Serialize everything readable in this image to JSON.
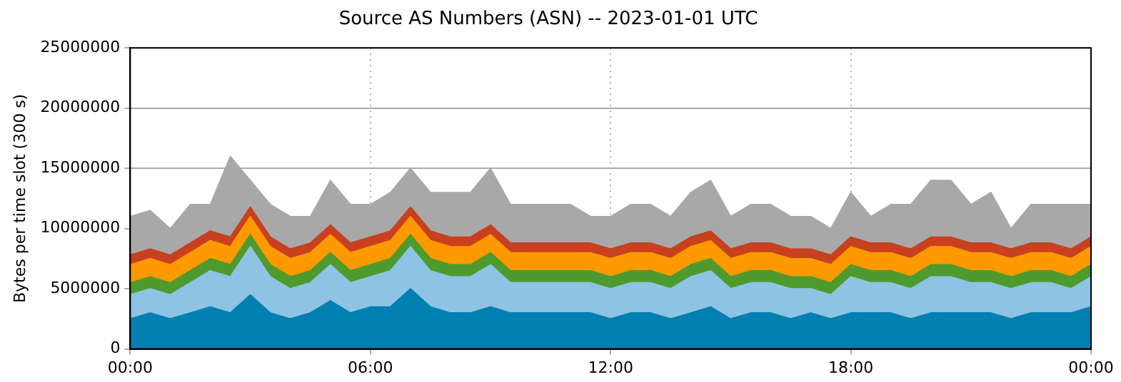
{
  "chart_data": {
    "type": "area",
    "title": "Source AS Numbers (ASN) -- 2023-01-01 UTC",
    "ylabel": "Bytes per time slot (300 s)",
    "stacked": true,
    "grid": true,
    "legend": false,
    "x": [
      0,
      0.5,
      1,
      1.5,
      2,
      2.5,
      3,
      3.5,
      4,
      4.5,
      5,
      5.5,
      6,
      6.5,
      7,
      7.5,
      8,
      8.5,
      9,
      9.5,
      10,
      10.5,
      11,
      11.5,
      12,
      12.5,
      13,
      13.5,
      14,
      14.5,
      15,
      15.5,
      16,
      16.5,
      17,
      17.5,
      18,
      18.5,
      19,
      19.5,
      20,
      20.5,
      21,
      21.5,
      22,
      22.5,
      23,
      23.5,
      24
    ],
    "xlim": [
      0,
      24
    ],
    "xticks": [
      {
        "value": 0,
        "label": "00:00"
      },
      {
        "value": 6,
        "label": "06:00"
      },
      {
        "value": 12,
        "label": "12:00"
      },
      {
        "value": 18,
        "label": "18:00"
      },
      {
        "value": 24,
        "label": "00:00"
      }
    ],
    "ylim": [
      0,
      25000000
    ],
    "yticks": [
      0,
      5000000,
      10000000,
      15000000,
      20000000,
      25000000
    ],
    "series": [
      {
        "color": "#0080b0",
        "values": [
          2500000,
          3000000,
          2500000,
          3000000,
          3500000,
          3000000,
          4500000,
          3000000,
          2500000,
          3000000,
          4000000,
          3000000,
          3500000,
          3500000,
          5000000,
          3500000,
          3000000,
          3000000,
          3500000,
          3000000,
          3000000,
          3000000,
          3000000,
          3000000,
          2500000,
          3000000,
          3000000,
          2500000,
          3000000,
          3500000,
          2500000,
          3000000,
          3000000,
          2500000,
          3000000,
          2500000,
          3000000,
          3000000,
          3000000,
          2500000,
          3000000,
          3000000,
          3000000,
          3000000,
          2500000,
          3000000,
          3000000,
          3000000,
          3500000
        ]
      },
      {
        "color": "#8ec3e3",
        "values": [
          2000000,
          2000000,
          2000000,
          2500000,
          3000000,
          3000000,
          4000000,
          3000000,
          2500000,
          2500000,
          3000000,
          2500000,
          2500000,
          3000000,
          3500000,
          3000000,
          3000000,
          3000000,
          3500000,
          2500000,
          2500000,
          2500000,
          2500000,
          2500000,
          2500000,
          2500000,
          2500000,
          2500000,
          3000000,
          3000000,
          2500000,
          2500000,
          2500000,
          2500000,
          2000000,
          2000000,
          3000000,
          2500000,
          2500000,
          2500000,
          3000000,
          3000000,
          2500000,
          2500000,
          2500000,
          2500000,
          2500000,
          2000000,
          2500000
        ]
      },
      {
        "color": "#4f9a2e",
        "values": [
          1000000,
          1000000,
          1000000,
          1000000,
          1000000,
          1000000,
          1000000,
          1000000,
          1000000,
          1000000,
          1000000,
          1000000,
          1000000,
          1000000,
          1000000,
          1000000,
          1000000,
          1000000,
          1000000,
          1000000,
          1000000,
          1000000,
          1000000,
          1000000,
          1000000,
          1000000,
          1000000,
          1000000,
          1000000,
          1000000,
          1000000,
          1000000,
          1000000,
          1000000,
          1000000,
          1000000,
          1000000,
          1000000,
          1000000,
          1000000,
          1000000,
          1000000,
          1000000,
          1000000,
          1000000,
          1000000,
          1000000,
          1000000,
          1000000
        ]
      },
      {
        "color": "#ff9900",
        "values": [
          1500000,
          1500000,
          1500000,
          1500000,
          1500000,
          1500000,
          1500000,
          1500000,
          1500000,
          1500000,
          1500000,
          1500000,
          1500000,
          1500000,
          1500000,
          1500000,
          1500000,
          1500000,
          1500000,
          1500000,
          1500000,
          1500000,
          1500000,
          1500000,
          1500000,
          1500000,
          1500000,
          1500000,
          1500000,
          1500000,
          1500000,
          1500000,
          1500000,
          1500000,
          1500000,
          1500000,
          1500000,
          1500000,
          1500000,
          1500000,
          1500000,
          1500000,
          1500000,
          1500000,
          1500000,
          1500000,
          1500000,
          1500000,
          1500000
        ]
      },
      {
        "color": "#c8401e",
        "values": [
          800000,
          800000,
          800000,
          800000,
          800000,
          800000,
          800000,
          800000,
          800000,
          800000,
          800000,
          800000,
          800000,
          800000,
          800000,
          800000,
          800000,
          800000,
          800000,
          800000,
          800000,
          800000,
          800000,
          800000,
          800000,
          800000,
          800000,
          800000,
          800000,
          800000,
          800000,
          800000,
          800000,
          800000,
          800000,
          800000,
          800000,
          800000,
          800000,
          800000,
          800000,
          800000,
          800000,
          800000,
          800000,
          800000,
          800000,
          800000,
          800000
        ]
      },
      {
        "color": "#a8a8a8",
        "values": [
          3200000,
          3200000,
          2200000,
          3200000,
          2200000,
          6700000,
          2200000,
          2700000,
          2700000,
          2200000,
          3700000,
          3200000,
          2700000,
          3200000,
          3200000,
          3200000,
          3700000,
          3700000,
          4700000,
          3200000,
          3200000,
          3200000,
          3200000,
          2200000,
          2700000,
          3200000,
          3200000,
          2700000,
          3700000,
          4200000,
          2700000,
          3200000,
          3200000,
          2700000,
          2700000,
          2200000,
          3700000,
          2200000,
          3200000,
          3700000,
          4700000,
          4700000,
          3200000,
          4200000,
          1700000,
          3200000,
          3200000,
          3700000,
          2700000
        ]
      }
    ]
  }
}
